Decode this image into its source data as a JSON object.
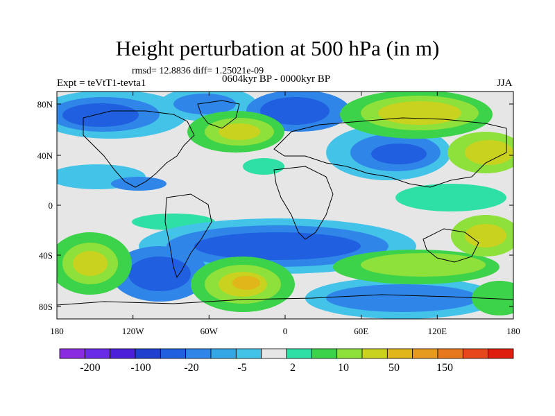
{
  "title": "Height perturbation at 500 hPa (in m)",
  "stats": "rmsd= 12.8836 diff= 1.25021e-09",
  "subtitle_left": "Expt = teVtT1-tevta1",
  "subtitle_center": "0604kyr BP - 0000kyr BP",
  "subtitle_right": "JJA",
  "lat_ticks": [
    "80N",
    "40N",
    "0",
    "40S",
    "80S"
  ],
  "lon_ticks": [
    "180",
    "120W",
    "60W",
    "0",
    "60E",
    "120E",
    "180"
  ],
  "colorbar": {
    "colors": [
      "#8a2be2",
      "#6a2be8",
      "#4b20d8",
      "#2040d0",
      "#1f5fe0",
      "#2f86e8",
      "#35a6e6",
      "#44c3e8",
      "#e6e6e6",
      "#2fe0a6",
      "#3cd24a",
      "#8ee03a",
      "#c9d21e",
      "#e0b61a",
      "#e69a1e",
      "#e8781e",
      "#e8461c",
      "#e01e0f"
    ],
    "labels": [
      "-200",
      "-100",
      "-20",
      "-5",
      "2",
      "10",
      "50",
      "150"
    ]
  }
}
